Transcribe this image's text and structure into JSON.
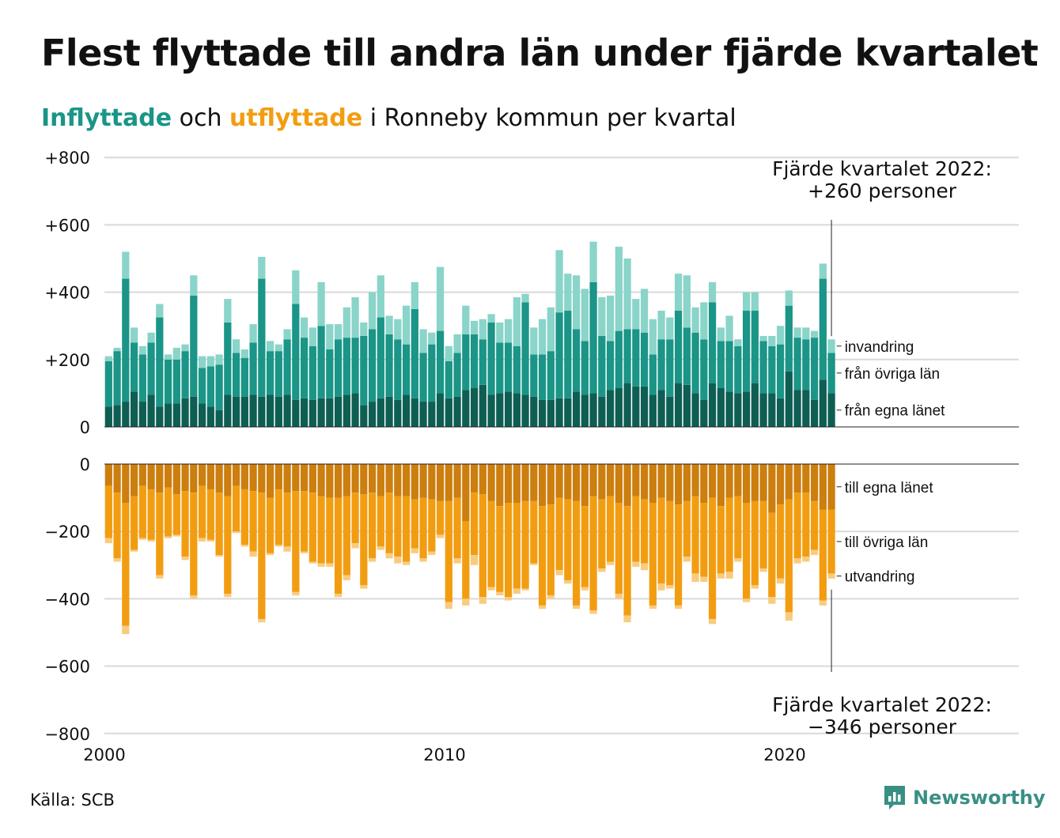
{
  "title": "Flest flyttade till andra län under fjärde kvartalet",
  "subtitle": {
    "part1": "Inflyttade",
    "part2": " och ",
    "part3": "utflyttade",
    "part4": " i Ronneby kommun per kvartal"
  },
  "source": "Källa: SCB",
  "logo": {
    "text": "Newsworthy",
    "icon": "newsworthy-chart-bubble-icon"
  },
  "colors": {
    "in_egna": "#0e5e54",
    "in_ovriga": "#1a9587",
    "in_invandring": "#8ad4c9",
    "out_egna": "#cc7e0e",
    "out_ovriga": "#f29d11",
    "out_utvandring": "#f8cc80",
    "grid": "#d9d9d9"
  },
  "chart_data": {
    "type": "bar",
    "stacked": true,
    "x_start": 2000,
    "quarters_per_year": 4,
    "x_ticks": [
      "2000",
      "2010",
      "2020"
    ],
    "in_yticks": [
      "+800",
      "+600",
      "+400",
      "+200",
      "0"
    ],
    "out_yticks": [
      "0",
      "−200",
      "−400",
      "−600",
      "−800"
    ],
    "ylim_in": [
      0,
      800
    ],
    "ylim_out": [
      -800,
      0
    ],
    "in_series_labels": [
      "invandring",
      "från övriga län",
      "från egna länet"
    ],
    "out_series_labels": [
      "till egna länet",
      "till övriga län",
      "utvandring"
    ],
    "annotation_in": [
      "Fjärde kvartalet 2022:",
      "+260 personer"
    ],
    "annotation_out": [
      "Fjärde kvartalet 2022:",
      "−346 personer"
    ],
    "in_egna": [
      60,
      65,
      75,
      105,
      75,
      95,
      60,
      70,
      70,
      85,
      90,
      70,
      60,
      50,
      95,
      90,
      90,
      95,
      90,
      95,
      90,
      95,
      80,
      85,
      80,
      85,
      85,
      90,
      95,
      100,
      65,
      75,
      85,
      90,
      80,
      95,
      85,
      75,
      75,
      100,
      85,
      90,
      110,
      115,
      125,
      95,
      100,
      105,
      100,
      95,
      90,
      80,
      80,
      85,
      85,
      105,
      95,
      100,
      90,
      110,
      115,
      130,
      120,
      120,
      95,
      110,
      90,
      130,
      125,
      100,
      80,
      130,
      115,
      105,
      100,
      105,
      130,
      100,
      100,
      85,
      165,
      110,
      110,
      80,
      140,
      100
    ],
    "in_ovriga": [
      135,
      160,
      365,
      145,
      140,
      155,
      265,
      130,
      130,
      140,
      300,
      105,
      120,
      135,
      215,
      130,
      115,
      155,
      350,
      130,
      135,
      165,
      285,
      180,
      160,
      215,
      145,
      170,
      170,
      165,
      205,
      215,
      240,
      185,
      180,
      150,
      265,
      145,
      170,
      185,
      110,
      130,
      165,
      160,
      135,
      215,
      150,
      145,
      140,
      275,
      125,
      135,
      145,
      255,
      260,
      185,
      160,
      330,
      180,
      145,
      170,
      160,
      170,
      160,
      120,
      150,
      170,
      215,
      170,
      180,
      180,
      240,
      140,
      150,
      140,
      240,
      215,
      155,
      140,
      160,
      195,
      155,
      150,
      185,
      300,
      120
    ],
    "in_invandring": [
      15,
      10,
      80,
      45,
      25,
      30,
      40,
      15,
      35,
      20,
      60,
      35,
      30,
      30,
      70,
      40,
      25,
      55,
      65,
      30,
      20,
      30,
      100,
      60,
      55,
      130,
      75,
      45,
      90,
      120,
      40,
      110,
      125,
      55,
      60,
      115,
      80,
      70,
      35,
      190,
      45,
      55,
      85,
      40,
      60,
      25,
      60,
      70,
      145,
      25,
      80,
      105,
      130,
      185,
      110,
      160,
      155,
      120,
      115,
      135,
      250,
      210,
      90,
      130,
      105,
      85,
      65,
      110,
      155,
      75,
      110,
      60,
      40,
      75,
      20,
      55,
      55,
      15,
      30,
      55,
      45,
      30,
      35,
      20,
      45,
      40
    ],
    "out_egna": [
      65,
      85,
      115,
      95,
      65,
      75,
      85,
      70,
      90,
      80,
      85,
      65,
      75,
      85,
      95,
      65,
      75,
      80,
      85,
      100,
      75,
      85,
      80,
      80,
      85,
      95,
      100,
      100,
      95,
      85,
      90,
      85,
      95,
      85,
      95,
      95,
      105,
      100,
      105,
      110,
      110,
      100,
      170,
      85,
      90,
      110,
      125,
      115,
      115,
      110,
      110,
      125,
      120,
      100,
      105,
      110,
      125,
      95,
      105,
      95,
      115,
      125,
      95,
      105,
      115,
      100,
      110,
      120,
      110,
      95,
      115,
      100,
      125,
      100,
      95,
      115,
      110,
      110,
      145,
      120,
      105,
      85,
      85,
      110,
      135,
      135
    ],
    "out_ovriga": [
      155,
      195,
      365,
      160,
      155,
      150,
      245,
      145,
      120,
      195,
      305,
      155,
      150,
      185,
      290,
      135,
      165,
      180,
      375,
      165,
      165,
      160,
      300,
      180,
      205,
      200,
      195,
      285,
      235,
      150,
      270,
      195,
      150,
      180,
      180,
      195,
      145,
      180,
      155,
      100,
      300,
      180,
      230,
      185,
      305,
      255,
      255,
      280,
      255,
      260,
      185,
      295,
      270,
      215,
      240,
      310,
      240,
      340,
      205,
      195,
      270,
      325,
      195,
      190,
      305,
      255,
      250,
      300,
      165,
      230,
      220,
      360,
      200,
      220,
      185,
      285,
      250,
      200,
      250,
      220,
      335,
      195,
      190,
      145,
      270,
      190
    ],
    "out_utvandring": [
      15,
      10,
      25,
      5,
      5,
      5,
      10,
      5,
      5,
      10,
      10,
      10,
      5,
      5,
      10,
      5,
      5,
      15,
      10,
      5,
      5,
      15,
      10,
      5,
      5,
      10,
      10,
      10,
      15,
      15,
      10,
      10,
      10,
      15,
      20,
      10,
      15,
      10,
      10,
      10,
      20,
      15,
      20,
      30,
      20,
      10,
      10,
      10,
      15,
      5,
      5,
      10,
      10,
      15,
      10,
      10,
      10,
      10,
      10,
      10,
      15,
      20,
      15,
      20,
      10,
      20,
      10,
      10,
      15,
      25,
      15,
      15,
      15,
      20,
      10,
      10,
      10,
      10,
      20,
      15,
      25,
      15,
      15,
      15,
      15,
      15
    ]
  }
}
